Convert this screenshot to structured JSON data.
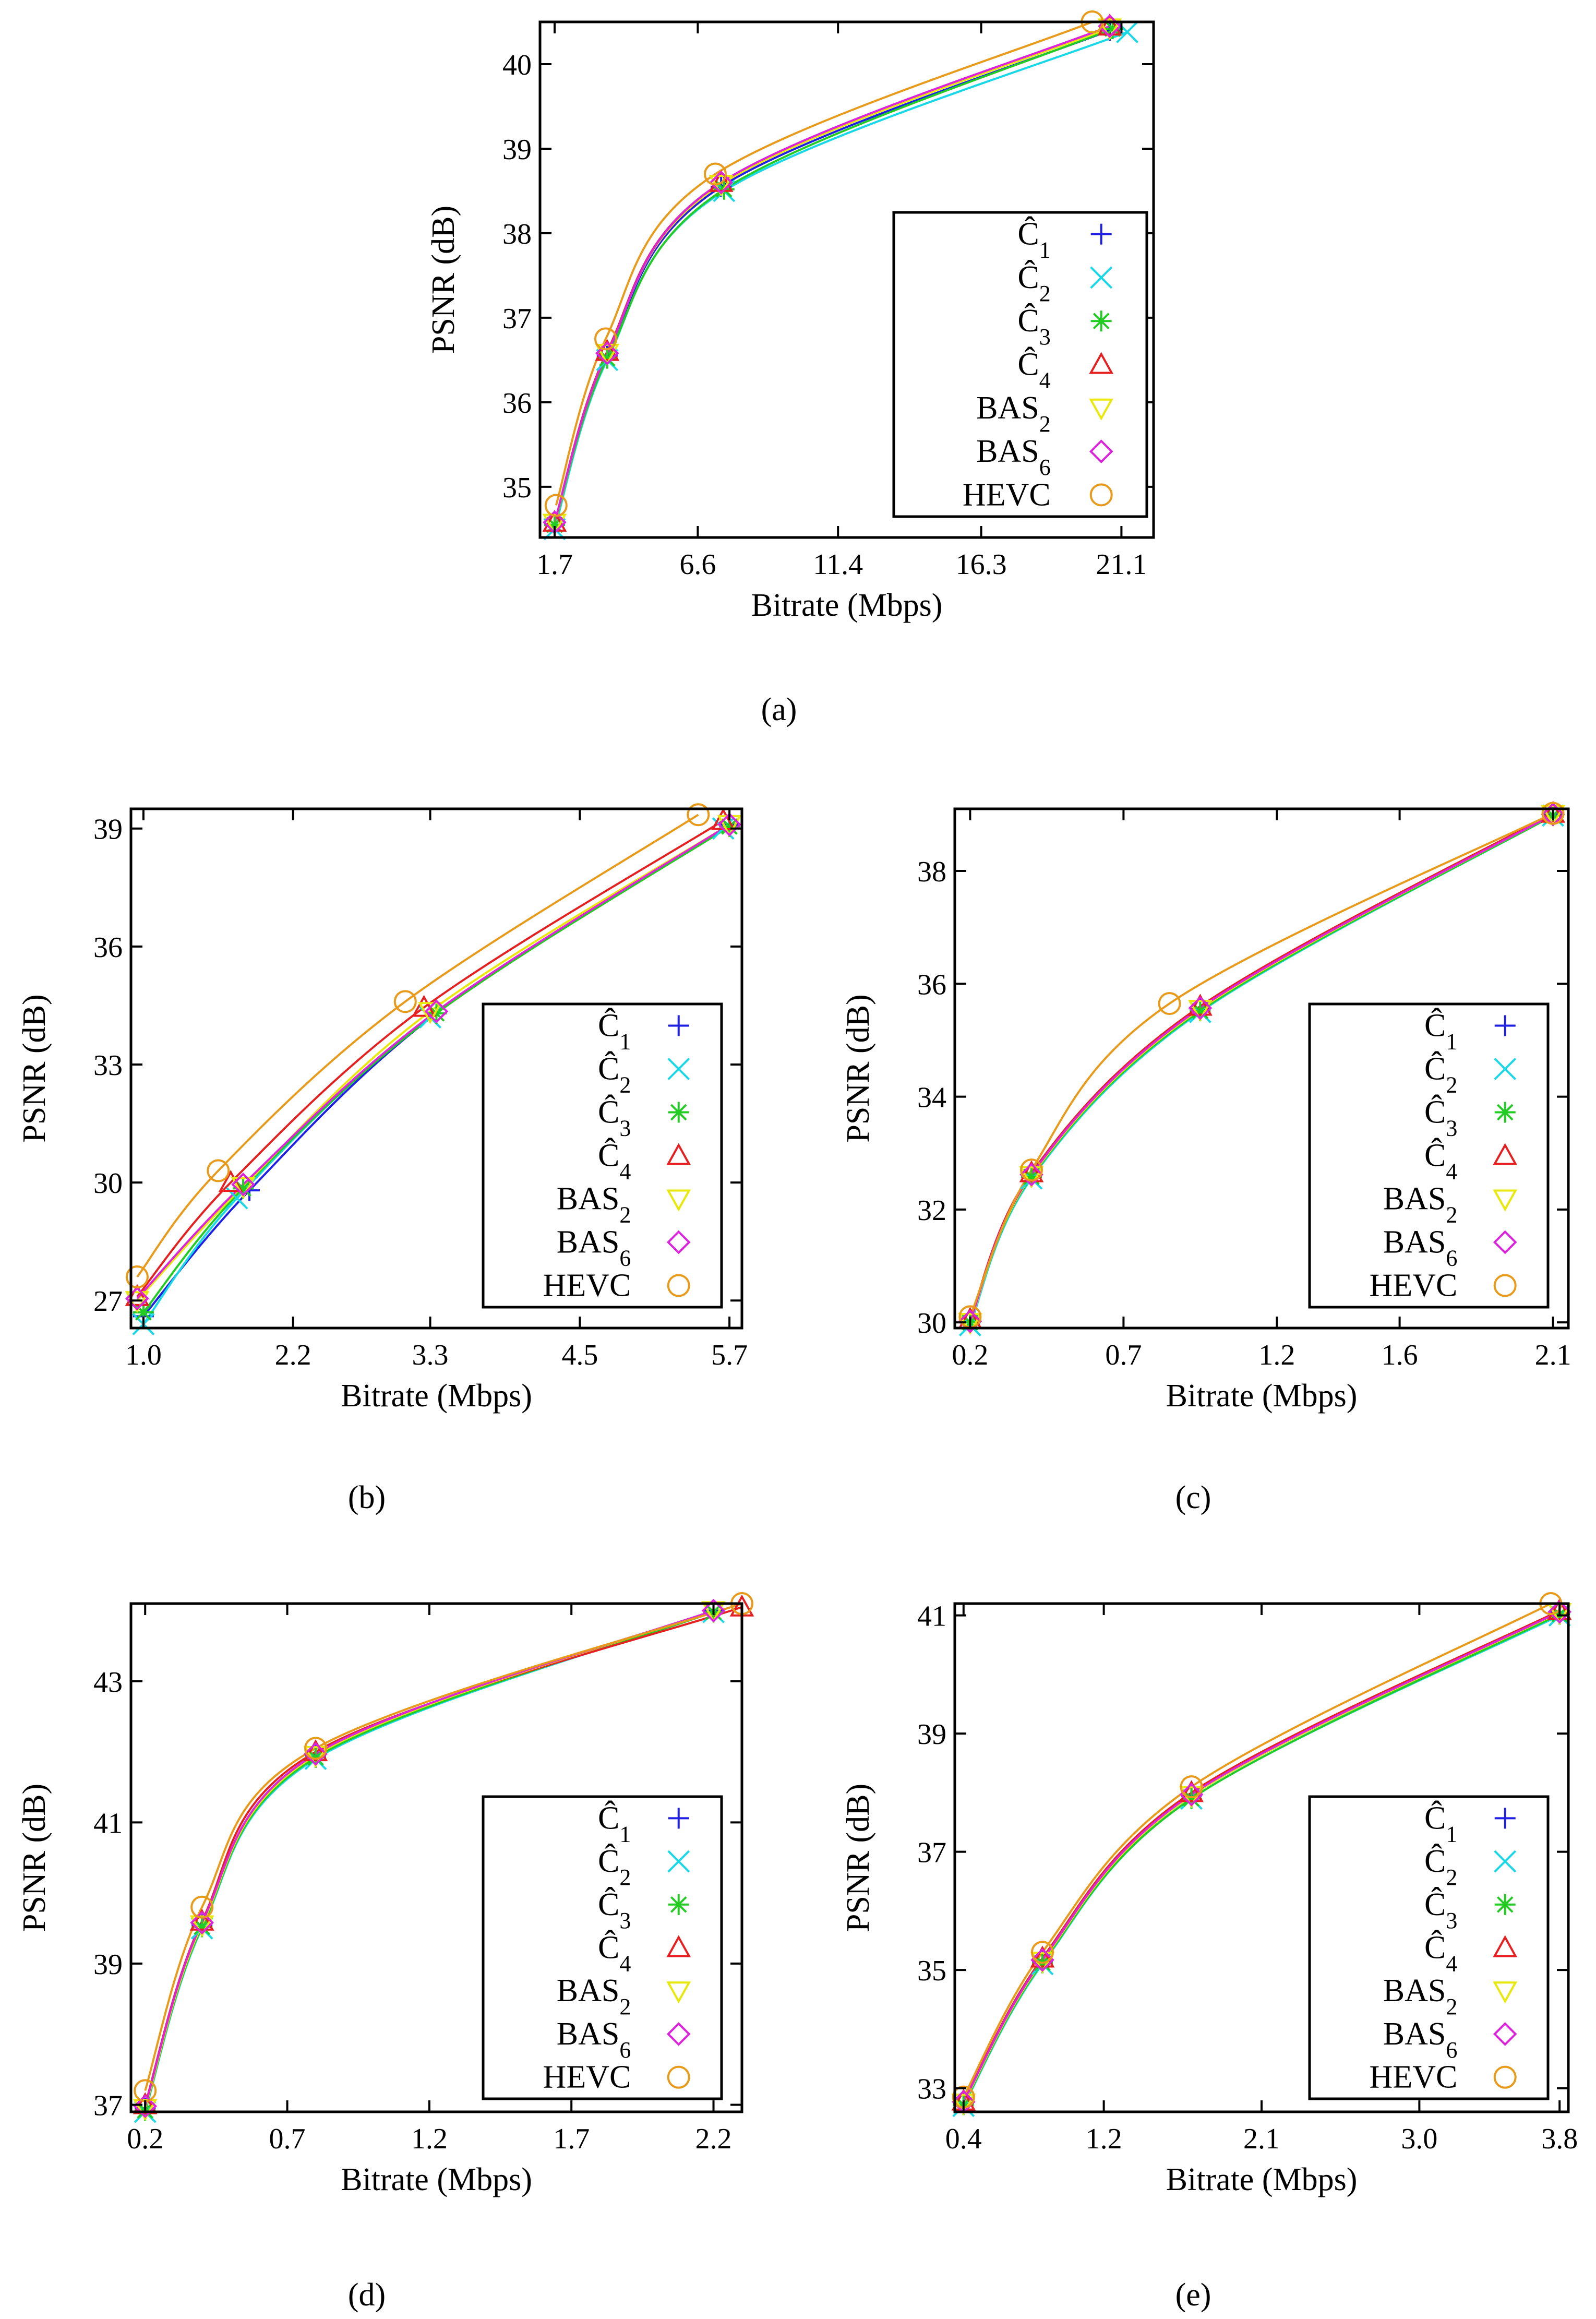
{
  "figure": {
    "legend_entries": [
      {
        "label": "Ĉ1",
        "base": "Ĉ",
        "sub": "1",
        "marker": "plus",
        "color": "#1f1fe6"
      },
      {
        "label": "Ĉ2",
        "base": "Ĉ",
        "sub": "2",
        "marker": "cross",
        "color": "#18d8e8"
      },
      {
        "label": "Ĉ3",
        "base": "Ĉ",
        "sub": "3",
        "marker": "star",
        "color": "#22cc22"
      },
      {
        "label": "Ĉ4",
        "base": "Ĉ",
        "sub": "4",
        "marker": "triangle-up",
        "color": "#e62020"
      },
      {
        "label": "BAS2",
        "base": "BAS",
        "sub": "2",
        "marker": "triangle-down",
        "color": "#e8e80a"
      },
      {
        "label": "BAS6",
        "base": "BAS",
        "sub": "6",
        "marker": "diamond",
        "color": "#dd22dd"
      },
      {
        "label": "HEVC",
        "base": "HEVC",
        "sub": "",
        "marker": "circle",
        "color": "#e89a1a"
      }
    ]
  },
  "chart_data": [
    {
      "id": "a",
      "caption": "(a)",
      "type": "line",
      "xlabel": "Bitrate (Mbps)",
      "ylabel": "PSNR (dB)",
      "xlim": [
        1.2,
        22.2
      ],
      "ylim": [
        34.4,
        40.5
      ],
      "xticks": [
        1.7,
        6.6,
        11.4,
        16.3,
        21.1
      ],
      "xtick_labels": [
        "1.7",
        "6.6",
        "11.4",
        "16.3",
        "21.1"
      ],
      "yticks": [
        35,
        36,
        37,
        38,
        39,
        40
      ],
      "ytick_labels": [
        "35",
        "36",
        "37",
        "38",
        "39",
        "40"
      ],
      "series": [
        {
          "name": "Ĉ1",
          "x": [
            1.7,
            3.5,
            7.4,
            20.7
          ],
          "y": [
            34.55,
            36.55,
            38.55,
            40.4
          ]
        },
        {
          "name": "Ĉ2",
          "x": [
            1.7,
            3.5,
            7.5,
            21.3
          ],
          "y": [
            34.5,
            36.5,
            38.5,
            40.38
          ]
        },
        {
          "name": "Ĉ3",
          "x": [
            1.7,
            3.5,
            7.5,
            20.8
          ],
          "y": [
            34.55,
            36.52,
            38.52,
            40.42
          ]
        },
        {
          "name": "Ĉ4",
          "x": [
            1.7,
            3.5,
            7.4,
            20.7
          ],
          "y": [
            34.58,
            36.6,
            38.6,
            40.45
          ]
        },
        {
          "name": "BAS2",
          "x": [
            1.7,
            3.5,
            7.4,
            20.7
          ],
          "y": [
            34.57,
            36.58,
            38.58,
            40.43
          ]
        },
        {
          "name": "BAS6",
          "x": [
            1.7,
            3.5,
            7.4,
            20.7
          ],
          "y": [
            34.58,
            36.58,
            38.6,
            40.45
          ]
        },
        {
          "name": "HEVC",
          "x": [
            1.75,
            3.45,
            7.2,
            20.1
          ],
          "y": [
            34.78,
            36.75,
            38.7,
            40.5
          ]
        }
      ]
    },
    {
      "id": "b",
      "caption": "(b)",
      "type": "line",
      "xlabel": "Bitrate (Mbps)",
      "ylabel": "PSNR (dB)",
      "xlim": [
        0.9,
        5.8
      ],
      "ylim": [
        26.3,
        39.5
      ],
      "xticks": [
        1.0,
        2.2,
        3.3,
        4.5,
        5.7
      ],
      "xtick_labels": [
        "1.0",
        "2.2",
        "3.3",
        "4.5",
        "5.7"
      ],
      "yticks": [
        27,
        30,
        33,
        36,
        39
      ],
      "ytick_labels": [
        "27",
        "30",
        "33",
        "36",
        "39"
      ],
      "series": [
        {
          "name": "Ĉ1",
          "x": [
            1.0,
            1.85,
            3.35,
            5.7
          ],
          "y": [
            26.6,
            29.8,
            34.3,
            39.1
          ]
        },
        {
          "name": "Ĉ2",
          "x": [
            1.0,
            1.75,
            3.3,
            5.65
          ],
          "y": [
            26.4,
            29.6,
            34.2,
            39.0
          ]
        },
        {
          "name": "Ĉ3",
          "x": [
            1.0,
            1.8,
            3.35,
            5.7
          ],
          "y": [
            26.7,
            29.85,
            34.3,
            39.05
          ]
        },
        {
          "name": "Ĉ4",
          "x": [
            0.95,
            1.7,
            3.25,
            5.65
          ],
          "y": [
            27.1,
            30.0,
            34.45,
            39.2
          ]
        },
        {
          "name": "BAS2",
          "x": [
            0.95,
            1.8,
            3.3,
            5.7
          ],
          "y": [
            27.0,
            29.9,
            34.35,
            39.1
          ]
        },
        {
          "name": "BAS6",
          "x": [
            0.95,
            1.8,
            3.35,
            5.7
          ],
          "y": [
            27.05,
            29.95,
            34.35,
            39.1
          ]
        },
        {
          "name": "HEVC",
          "x": [
            0.95,
            1.6,
            3.1,
            5.45
          ],
          "y": [
            27.6,
            30.3,
            34.6,
            39.35
          ]
        }
      ]
    },
    {
      "id": "c",
      "caption": "(c)",
      "type": "line",
      "xlabel": "Bitrate (Mbps)",
      "ylabel": "PSNR (dB)",
      "xlim": [
        0.15,
        2.15
      ],
      "ylim": [
        29.9,
        39.1
      ],
      "xticks": [
        0.2,
        0.7,
        1.2,
        1.6,
        2.1
      ],
      "xtick_labels": [
        "0.2",
        "0.7",
        "1.2",
        "1.6",
        "2.1"
      ],
      "yticks": [
        30,
        32,
        34,
        36,
        38
      ],
      "ytick_labels": [
        "30",
        "32",
        "34",
        "36",
        "38"
      ],
      "series": [
        {
          "name": "Ĉ1",
          "x": [
            0.2,
            0.4,
            0.95,
            2.1
          ],
          "y": [
            30.0,
            32.6,
            35.55,
            39.0
          ]
        },
        {
          "name": "Ĉ2",
          "x": [
            0.2,
            0.4,
            0.95,
            2.1
          ],
          "y": [
            29.95,
            32.55,
            35.5,
            38.98
          ]
        },
        {
          "name": "Ĉ3",
          "x": [
            0.2,
            0.4,
            0.95,
            2.1
          ],
          "y": [
            30.0,
            32.58,
            35.52,
            38.98
          ]
        },
        {
          "name": "Ĉ4",
          "x": [
            0.2,
            0.4,
            0.95,
            2.1
          ],
          "y": [
            30.05,
            32.65,
            35.6,
            39.02
          ]
        },
        {
          "name": "BAS2",
          "x": [
            0.2,
            0.4,
            0.95,
            2.1
          ],
          "y": [
            30.0,
            32.6,
            35.55,
            39.0
          ]
        },
        {
          "name": "BAS6",
          "x": [
            0.2,
            0.4,
            0.95,
            2.1
          ],
          "y": [
            30.02,
            32.62,
            35.57,
            39.0
          ]
        },
        {
          "name": "HEVC",
          "x": [
            0.2,
            0.4,
            0.85,
            2.1
          ],
          "y": [
            30.1,
            32.7,
            35.65,
            39.02
          ]
        }
      ]
    },
    {
      "id": "d",
      "caption": "(d)",
      "type": "line",
      "xlabel": "Bitrate (Mbps)",
      "ylabel": "PSNR (dB)",
      "xlim": [
        0.15,
        2.3
      ],
      "ylim": [
        36.9,
        44.1
      ],
      "xticks": [
        0.2,
        0.7,
        1.2,
        1.7,
        2.2
      ],
      "xtick_labels": [
        "0.2",
        "0.7",
        "1.2",
        "1.7",
        "2.2"
      ],
      "yticks": [
        37,
        39,
        41,
        43
      ],
      "ytick_labels": [
        "37",
        "39",
        "41",
        "43"
      ],
      "series": [
        {
          "name": "Ĉ1",
          "x": [
            0.2,
            0.4,
            0.8,
            2.2
          ],
          "y": [
            36.95,
            39.55,
            41.95,
            44.0
          ]
        },
        {
          "name": "Ĉ2",
          "x": [
            0.2,
            0.4,
            0.8,
            2.2
          ],
          "y": [
            36.9,
            39.5,
            41.9,
            43.98
          ]
        },
        {
          "name": "Ĉ3",
          "x": [
            0.2,
            0.4,
            0.8,
            2.2
          ],
          "y": [
            36.92,
            39.52,
            41.92,
            43.98
          ]
        },
        {
          "name": "Ĉ4",
          "x": [
            0.2,
            0.4,
            0.8,
            2.3
          ],
          "y": [
            37.0,
            39.6,
            42.0,
            44.05
          ]
        },
        {
          "name": "BAS2",
          "x": [
            0.2,
            0.4,
            0.8,
            2.2
          ],
          "y": [
            36.95,
            39.55,
            41.95,
            44.0
          ]
        },
        {
          "name": "BAS6",
          "x": [
            0.2,
            0.4,
            0.8,
            2.2
          ],
          "y": [
            36.98,
            39.58,
            41.97,
            44.0
          ]
        },
        {
          "name": "HEVC",
          "x": [
            0.2,
            0.4,
            0.8,
            2.3
          ],
          "y": [
            37.2,
            39.8,
            42.05,
            44.1
          ]
        }
      ]
    },
    {
      "id": "e",
      "caption": "(e)",
      "type": "line",
      "xlabel": "Bitrate (Mbps)",
      "ylabel": "PSNR (dB)",
      "xlim": [
        0.35,
        3.85
      ],
      "ylim": [
        32.6,
        41.2
      ],
      "xticks": [
        0.4,
        1.2,
        2.1,
        3.0,
        3.8
      ],
      "xtick_labels": [
        "0.4",
        "1.2",
        "2.1",
        "3.0",
        "3.8"
      ],
      "yticks": [
        33,
        35,
        37,
        39,
        41
      ],
      "ytick_labels": [
        "33",
        "35",
        "37",
        "39",
        "41"
      ],
      "series": [
        {
          "name": "Ĉ1",
          "x": [
            0.4,
            0.85,
            1.7,
            3.8
          ],
          "y": [
            32.75,
            35.15,
            37.95,
            41.05
          ]
        },
        {
          "name": "Ĉ2",
          "x": [
            0.4,
            0.85,
            1.7,
            3.8
          ],
          "y": [
            32.7,
            35.1,
            37.9,
            41.0
          ]
        },
        {
          "name": "Ĉ3",
          "x": [
            0.4,
            0.85,
            1.7,
            3.8
          ],
          "y": [
            32.72,
            35.12,
            37.9,
            41.02
          ]
        },
        {
          "name": "Ĉ4",
          "x": [
            0.4,
            0.85,
            1.7,
            3.8
          ],
          "y": [
            32.78,
            35.2,
            38.0,
            41.08
          ]
        },
        {
          "name": "BAS2",
          "x": [
            0.4,
            0.85,
            1.7,
            3.8
          ],
          "y": [
            32.75,
            35.15,
            37.95,
            41.05
          ]
        },
        {
          "name": "BAS6",
          "x": [
            0.4,
            0.85,
            1.7,
            3.8
          ],
          "y": [
            32.77,
            35.17,
            37.97,
            41.06
          ]
        },
        {
          "name": "HEVC",
          "x": [
            0.4,
            0.85,
            1.7,
            3.75
          ],
          "y": [
            32.85,
            35.3,
            38.1,
            41.2
          ]
        }
      ]
    }
  ]
}
